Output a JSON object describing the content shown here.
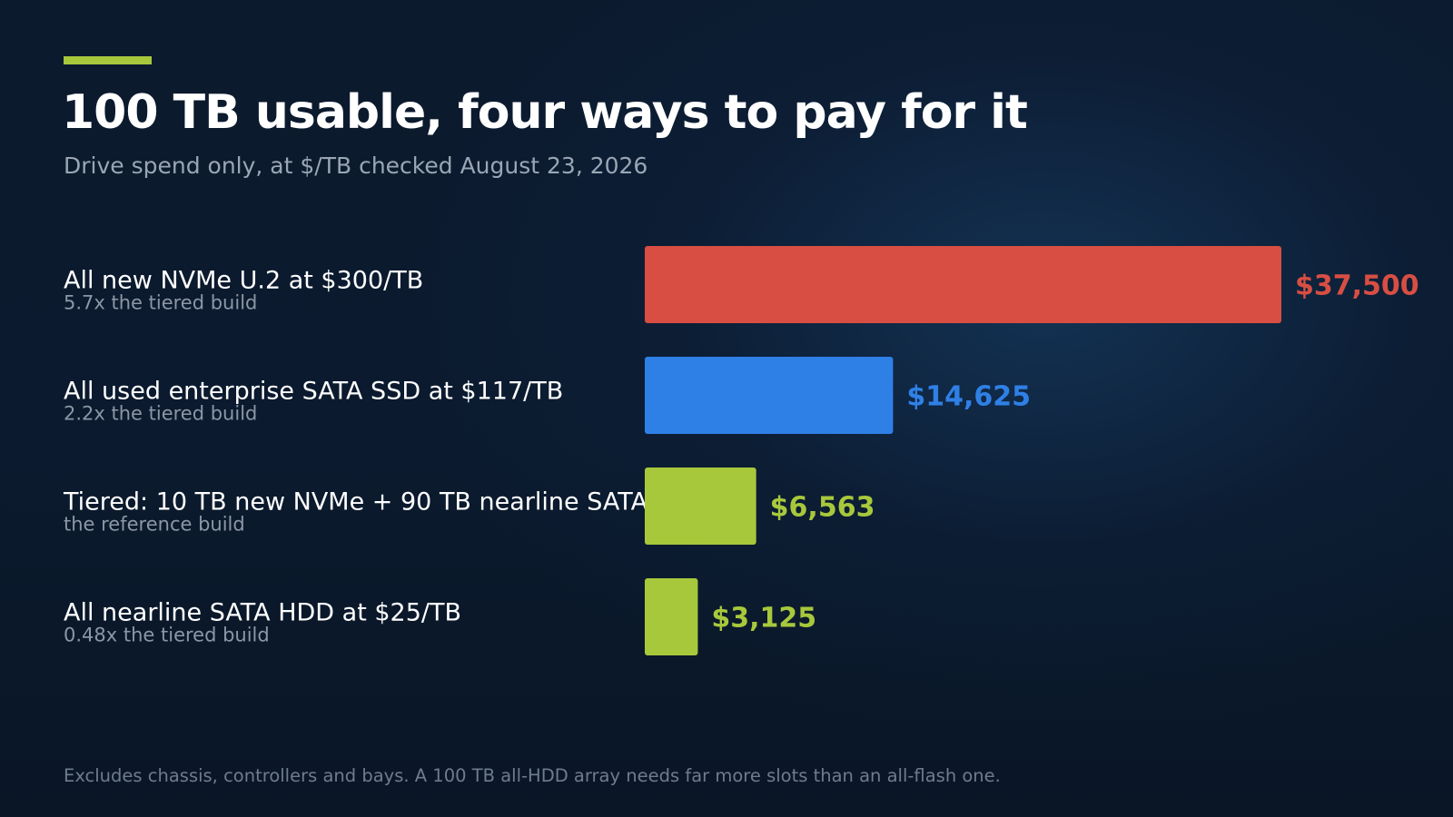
{
  "header": {
    "title": "100 TB usable, four ways to pay for it",
    "subtitle": "Drive spend only, at $/TB checked August 23, 2026"
  },
  "colors": {
    "accent": "#a8c83c",
    "nvme": "#d84e43",
    "used_ssd": "#2f80e6",
    "tiered": "#a8c83c",
    "hdd": "#a8c83c"
  },
  "chart_data": {
    "type": "bar",
    "orientation": "horizontal",
    "categories": [
      "All new NVMe U.2 at $300/TB",
      "All used enterprise SATA SSD at $117/TB",
      "Tiered: 10 TB new NVMe + 90 TB nearline SATA",
      "All nearline SATA HDD at $25/TB"
    ],
    "notes": [
      "5.7x the tiered build",
      "2.2x the tiered build",
      "the reference build",
      "0.48x the tiered build"
    ],
    "values": [
      37500,
      14625,
      6563,
      3125
    ],
    "value_labels": [
      "$37,500",
      "$14,625",
      "$6,563",
      "$3,125"
    ],
    "bar_colors": [
      "#d84e43",
      "#2f80e6",
      "#a8c83c",
      "#a8c83c"
    ],
    "xlim": [
      0,
      37500
    ],
    "grid": false,
    "legend": "none"
  },
  "footnote": "Excludes chassis, controllers and bays. A 100 TB all-HDD array needs far more slots than an all-flash one."
}
